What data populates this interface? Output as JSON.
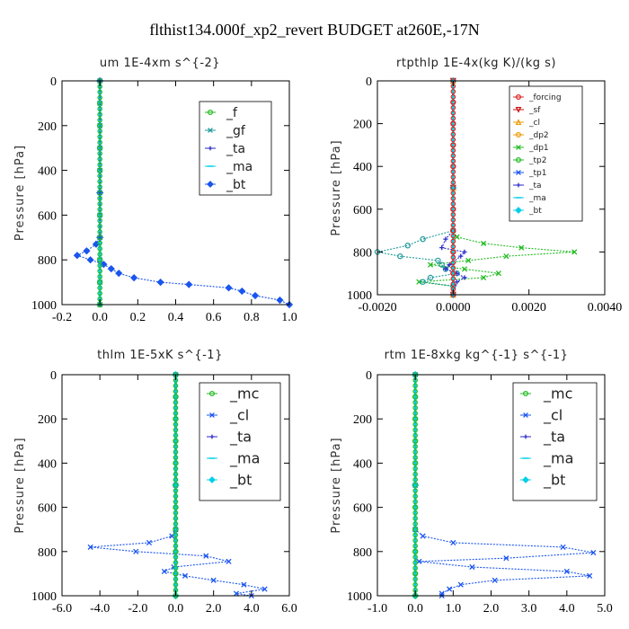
{
  "figure_title": "flthist134.000f_xp2_revert  BUDGET at260E,-17N",
  "colors": {
    "green": "#22bb22",
    "blue": "#1a55ee",
    "cyan": "#00cfe8",
    "red": "#dd2222",
    "orange": "#ee9900",
    "navy": "#2a2acc",
    "teal": "#1f9a9a"
  },
  "chart_data": [
    {
      "id": "um",
      "type": "line",
      "title": "um   1E-4xm s^{-2}",
      "ylabel": "Pressure [hPa]",
      "xlim": [
        -0.2,
        1.0
      ],
      "ylim": [
        1000,
        0
      ],
      "xticks": [
        -0.2,
        0.0,
        0.2,
        0.4,
        0.6,
        0.8,
        1.0
      ],
      "xticklabels": [
        "-0.2",
        "0.0",
        "0.2",
        "0.4",
        "0.6",
        "0.8",
        "1.0"
      ],
      "yticks": [
        0,
        200,
        400,
        600,
        800,
        1000
      ],
      "yticklabels": [
        "0",
        "200",
        "400",
        "600",
        "800",
        "1000"
      ],
      "legend_position": "top-right",
      "series": [
        {
          "name": "_f",
          "color": "#22bb22",
          "marker": "circle",
          "pressure": [
            0,
            100,
            200,
            300,
            400,
            500,
            600,
            700,
            800,
            900,
            1000
          ],
          "values": [
            0,
            0,
            0,
            0,
            0,
            0,
            0,
            0,
            0,
            0,
            0
          ]
        },
        {
          "name": "_gf",
          "color": "#1f9a9a",
          "marker": "x",
          "pressure": [
            0,
            100,
            200,
            300,
            400,
            500,
            600,
            700,
            800,
            900,
            1000
          ],
          "values": [
            0,
            0,
            0,
            0,
            0,
            0,
            0,
            0,
            0,
            0,
            0
          ]
        },
        {
          "name": "_ta",
          "color": "#2a2acc",
          "marker": "plus",
          "pressure": [
            0,
            500,
            1000
          ],
          "values": [
            0,
            0,
            0
          ]
        },
        {
          "name": "_ma",
          "color": "#00cfe8",
          "marker": "dash",
          "pressure": [
            0,
            500,
            1000
          ],
          "values": [
            0,
            0,
            0
          ]
        },
        {
          "name": "_bt",
          "color": "#1a55ee",
          "marker": "diamond",
          "pressure": [
            0,
            500,
            700,
            730,
            760,
            780,
            800,
            820,
            840,
            860,
            880,
            900,
            910,
            925,
            940,
            960,
            980,
            1000
          ],
          "values": [
            0,
            0,
            0,
            -0.02,
            -0.07,
            -0.12,
            -0.05,
            0.02,
            0.06,
            0.1,
            0.18,
            0.32,
            0.47,
            0.68,
            0.75,
            0.82,
            0.95,
            1.0
          ]
        }
      ],
      "legend": [
        "_f",
        "_gf",
        "_ta",
        "_ma",
        "_bt"
      ]
    },
    {
      "id": "rtpthlp",
      "type": "line",
      "title": "rtpthlp   1E-4x(kg K)/(kg s)",
      "ylabel": "Pressure [hPa]",
      "xlim": [
        -0.002,
        0.004
      ],
      "ylim": [
        1000,
        0
      ],
      "xticks": [
        -0.002,
        0.0,
        0.002,
        0.004
      ],
      "xticklabels": [
        "-0.0020",
        "0.0000",
        "0.0020",
        "0.0040"
      ],
      "yticks": [
        0,
        200,
        400,
        600,
        800,
        1000
      ],
      "yticklabels": [
        "0",
        "200",
        "400",
        "600",
        "800",
        "1000"
      ],
      "legend_position": "top-right",
      "series": [
        {
          "name": "_dp1",
          "color": "#22bb22",
          "marker": "x",
          "pressure": [
            0,
            500,
            700,
            730,
            760,
            780,
            800,
            820,
            840,
            860,
            880,
            900,
            920,
            940,
            960,
            1000
          ],
          "values": [
            0,
            0,
            0,
            0.0001,
            0.0008,
            0.0018,
            0.0032,
            0.0014,
            0.0004,
            -0.0006,
            0.0003,
            0.0012,
            0.0008,
            -0.0009,
            0,
            0
          ]
        },
        {
          "name": "_tp2",
          "color": "#1f9a9a",
          "marker": "circle",
          "pressure": [
            0,
            500,
            700,
            740,
            770,
            800,
            820,
            840,
            860,
            880,
            900,
            920,
            940,
            960,
            1000
          ],
          "values": [
            0,
            0,
            0,
            -0.0008,
            -0.0012,
            -0.002,
            -0.0014,
            -0.0004,
            -0.0003,
            -0.0002,
            0.0001,
            -0.0006,
            -0.0008,
            0,
            0
          ]
        },
        {
          "name": "_ta",
          "color": "#2a2acc",
          "marker": "plus",
          "pressure": [
            0,
            500,
            700,
            740,
            780,
            800,
            820,
            860,
            880,
            900,
            920,
            940,
            1000
          ],
          "values": [
            0,
            0,
            0,
            -0.0002,
            -0.0003,
            0.0003,
            0.0002,
            -0.0001,
            -0.0002,
            0.0001,
            0.0003,
            0.0001,
            0
          ]
        },
        {
          "name": "_forcing",
          "color": "#dd2222",
          "marker": "circle",
          "pressure": [
            0,
            100,
            200,
            300,
            400,
            500,
            600,
            700,
            800,
            900,
            1000
          ],
          "values": [
            0,
            0,
            0,
            0,
            0,
            0,
            0,
            0,
            0,
            0,
            0
          ]
        },
        {
          "name": "_sf",
          "color": "#cc1111",
          "marker": "triangle-down",
          "pressure": [
            0,
            500,
            1000
          ],
          "values": [
            0,
            0,
            0
          ]
        },
        {
          "name": "_cl",
          "color": "#ee9900",
          "marker": "triangle",
          "pressure": [
            0,
            500,
            1000
          ],
          "values": [
            0,
            0,
            0
          ]
        },
        {
          "name": "_bt",
          "color": "#00cfe8",
          "marker": "diamond",
          "pressure": [
            0,
            500,
            1000
          ],
          "values": [
            0,
            0,
            0
          ]
        }
      ],
      "legend": [
        "_forcing",
        "_sf",
        "_cl",
        "_dp2",
        "_dp1",
        "_tp2",
        "_tp1",
        "_ta",
        "_ma",
        "_bt"
      ],
      "legend_colors": [
        "#dd2222",
        "#cc1111",
        "#ee9900",
        "#ee9900",
        "#22bb22",
        "#22bb22",
        "#1a55ee",
        "#2a2acc",
        "#00cfe8",
        "#00cfe8"
      ],
      "legend_markers": [
        "circle",
        "triangle-down",
        "triangle",
        "circle",
        "x",
        "circle",
        "x",
        "plus",
        "dash",
        "diamond"
      ]
    },
    {
      "id": "thlm",
      "type": "line",
      "title": "thlm   1E-5xK s^{-1}",
      "ylabel": "Pressure [hPa]",
      "xlim": [
        -6.0,
        6.0
      ],
      "ylim": [
        1000,
        0
      ],
      "xticks": [
        -6,
        -4,
        -2,
        0,
        2,
        4,
        6
      ],
      "xticklabels": [
        "-6.0",
        "-4.0",
        "-2.0",
        "0.0",
        "2.0",
        "4.0",
        "6.0"
      ],
      "yticks": [
        0,
        200,
        400,
        600,
        800,
        1000
      ],
      "yticklabels": [
        "0",
        "200",
        "400",
        "600",
        "800",
        "1000"
      ],
      "legend_position": "top-right",
      "series": [
        {
          "name": "_mc",
          "color": "#22bb22",
          "marker": "circle",
          "pressure": [
            0,
            100,
            200,
            300,
            400,
            500,
            600,
            700,
            800,
            900,
            1000
          ],
          "values": [
            0,
            0,
            0,
            0,
            0,
            0,
            0,
            0,
            0,
            0,
            0
          ]
        },
        {
          "name": "_ta",
          "color": "#2a2acc",
          "marker": "plus",
          "pressure": [
            0,
            500,
            1000
          ],
          "values": [
            0,
            0,
            0
          ]
        },
        {
          "name": "_ma",
          "color": "#00cfe8",
          "marker": "dash",
          "pressure": [
            0,
            500,
            1000
          ],
          "values": [
            0,
            0,
            0
          ]
        },
        {
          "name": "_cl",
          "color": "#1a55ee",
          "marker": "x",
          "pressure": [
            0,
            500,
            700,
            730,
            760,
            780,
            800,
            820,
            845,
            870,
            890,
            910,
            930,
            950,
            970,
            990,
            1000
          ],
          "values": [
            0,
            0,
            0,
            -0.2,
            -1.4,
            -4.5,
            -2.1,
            1.6,
            2.8,
            -0.1,
            -0.6,
            0.5,
            2.0,
            3.6,
            4.7,
            3.2,
            4.0
          ]
        },
        {
          "name": "_bt",
          "color": "#00cfe8",
          "marker": "diamond",
          "pressure": [
            0,
            500,
            1000
          ],
          "values": [
            0,
            0,
            0
          ]
        }
      ],
      "legend": [
        "_mc",
        "_cl",
        "_ta",
        "_ma",
        "_bt"
      ]
    },
    {
      "id": "rtm",
      "type": "line",
      "title": "rtm   1E-8xkg kg^{-1} s^{-1}",
      "ylabel": "Pressure [hPa]",
      "xlim": [
        -1.0,
        5.0
      ],
      "ylim": [
        1000,
        0
      ],
      "xticks": [
        -1,
        0,
        1,
        2,
        3,
        4,
        5
      ],
      "xticklabels": [
        "-1.0",
        "0.0",
        "1.0",
        "2.0",
        "3.0",
        "4.0",
        "5.0"
      ],
      "yticks": [
        0,
        200,
        400,
        600,
        800,
        1000
      ],
      "yticklabels": [
        "0",
        "200",
        "400",
        "600",
        "800",
        "1000"
      ],
      "legend_position": "top-right",
      "series": [
        {
          "name": "_mc",
          "color": "#22bb22",
          "marker": "circle",
          "pressure": [
            0,
            100,
            200,
            300,
            400,
            500,
            600,
            700,
            800,
            900,
            1000
          ],
          "values": [
            0,
            0,
            0,
            0,
            0,
            0,
            0,
            0,
            0,
            0,
            0
          ]
        },
        {
          "name": "_ta",
          "color": "#2a2acc",
          "marker": "plus",
          "pressure": [
            0,
            500,
            1000
          ],
          "values": [
            0,
            0,
            0
          ]
        },
        {
          "name": "_ma",
          "color": "#00cfe8",
          "marker": "dash",
          "pressure": [
            0,
            500,
            1000
          ],
          "values": [
            0,
            0,
            0
          ]
        },
        {
          "name": "_cl",
          "color": "#1a55ee",
          "marker": "x",
          "pressure": [
            0,
            500,
            700,
            730,
            760,
            780,
            805,
            830,
            845,
            870,
            890,
            910,
            930,
            950,
            970,
            990,
            1000
          ],
          "values": [
            0,
            0,
            0,
            0.2,
            1.0,
            3.9,
            4.7,
            2.4,
            0.1,
            1.5,
            4.0,
            4.6,
            2.1,
            1.2,
            0.9,
            0.7,
            0.7
          ]
        },
        {
          "name": "_bt",
          "color": "#00cfe8",
          "marker": "diamond",
          "pressure": [
            0,
            500,
            1000
          ],
          "values": [
            0,
            0,
            0
          ]
        }
      ],
      "legend": [
        "_mc",
        "_cl",
        "_ta",
        "_ma",
        "_bt"
      ]
    }
  ]
}
